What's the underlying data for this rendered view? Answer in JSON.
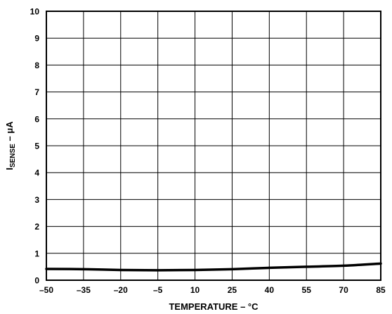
{
  "chart_data": {
    "type": "line",
    "xlabel": "TEMPERATURE – °C",
    "ylabel_main": "I",
    "ylabel_sub": "SENSE",
    "ylabel_rest": " – μA",
    "xlim": [
      -50,
      85
    ],
    "ylim": [
      0,
      10
    ],
    "x_ticks": [
      -50,
      -35,
      -20,
      -5,
      10,
      25,
      40,
      55,
      70,
      85
    ],
    "x_tick_labels": [
      "–50",
      "–35",
      "–20",
      "–5",
      "10",
      "25",
      "40",
      "55",
      "70",
      "85"
    ],
    "y_ticks": [
      0,
      1,
      2,
      3,
      4,
      5,
      6,
      7,
      8,
      9,
      10
    ],
    "y_tick_labels": [
      "0",
      "1",
      "2",
      "3",
      "4",
      "5",
      "6",
      "7",
      "8",
      "9",
      "10"
    ],
    "grid": true,
    "line_color": "#000000",
    "series": [
      {
        "x": [
          -50,
          -35,
          -20,
          -5,
          10,
          25,
          40,
          55,
          70,
          85
        ],
        "y": [
          0.42,
          0.41,
          0.38,
          0.37,
          0.38,
          0.41,
          0.46,
          0.5,
          0.54,
          0.62
        ]
      }
    ]
  }
}
